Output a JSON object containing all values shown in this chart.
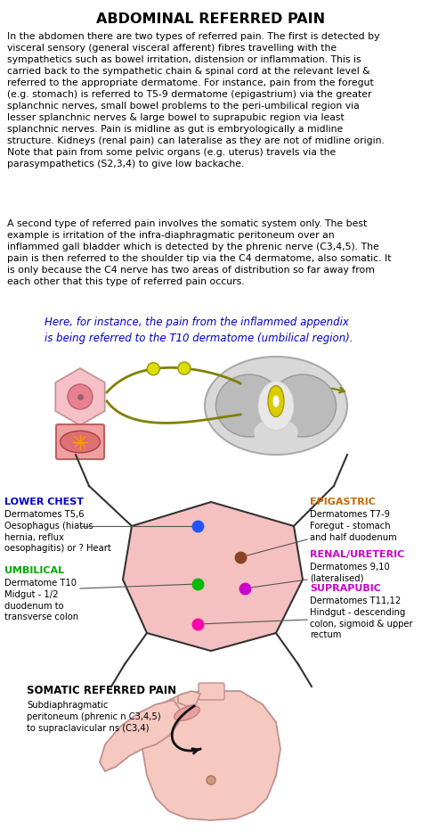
{
  "title": "ABDOMINAL REFERRED PAIN",
  "title_fontsize": 11.5,
  "body_text_1": "In the abdomen there are two types of referred pain. The first is detected by\nvisceral sensory (general visceral afferent) fibres travelling with the\nsympathetics such as bowel irritation, distension or inflammation. This is\ncarried back to the sympathetic chain & spinal cord at the relevant level &\nreferred to the appropriate dermatome. For instance, pain from the foregut\n(e.g. stomach) is referred to T5-9 dermatome (epigastrium) via the greater\nsplanchnic nerves, small bowel problems to the peri-umbilical region via\nlesser splanchnic nerves & large bowel to suprapubic region via least\nsplanchnic nerves. Pain is midline as gut is embryologically a midline\nstructure. Kidneys (renal pain) can lateralise as they are not of midline origin.\nNote that pain from some pelvic organs (e.g. uterus) travels via the\nparasympathetics (S2,3,4) to give low backache.",
  "body_text_2": "A second type of referred pain involves the somatic system only. The best\nexample is irritation of the infra-diaphragmatic peritoneum over an\ninflammed gall bladder which is detected by the phrenic nerve (C3,4,5). The\npain is then referred to the shoulder tip via the C4 dermatome, also somatic. It\nis only because the C4 nerve has two areas of distribution so far away from\neach other that this type of referred pain occurs.",
  "highlight_text": "Here, for instance, the pain from the inflammed appendix\nis being referred to the T10 dermatome (umbilical region).",
  "highlight_color": "#0000CC",
  "background_color": "#ffffff",
  "body_fontsize": 7.8,
  "lower_chest_title": "LOWER CHEST",
  "lower_chest_body": "Dermatomes T5,6\nOesophagus (hiatus\nhernia, reflux\noesophagitis) or ? Heart",
  "lower_chest_title_color": "#0000CC",
  "umbilical_title": "UMBILICAL",
  "umbilical_body": "Dermatome T10\nMidgut - 1/2\nduodenum to\ntransverse colon",
  "umbilical_title_color": "#00aa00",
  "epigastric_title": "EPIGASTRIC",
  "epigastric_body": "Dermatomes T7-9\nForegut - stomach\nand half duodenum",
  "epigastric_title_color": "#cc6600",
  "renal_title": "RENAL/URETERIC",
  "renal_body": "Dermatomes 9,10\n(lateralised)",
  "renal_title_color": "#cc00cc",
  "suprapubic_title": "SUPRAPUBIC",
  "suprapubic_body": "Dermatomes T11,12\nHindgut - descending\ncolon, sigmoid & upper\nrectum",
  "suprapubic_title_color": "#cc00cc",
  "somatic_title": "SOMATIC REFERRED PAIN",
  "somatic_body": "Subdiaphragmatic\nperitoneum (phrenic n C3,4,5)\nto supraclavicular ns (C3,4)"
}
